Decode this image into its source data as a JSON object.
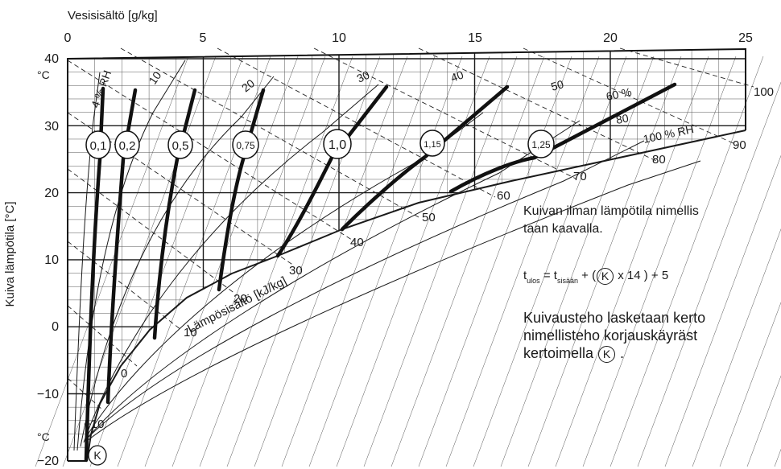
{
  "chart_data": {
    "type": "diagram",
    "x_axis": {
      "label": "Vesisisältö [g/kg]",
      "ticks": [
        "0",
        "5",
        "10",
        "15",
        "20",
        "25"
      ]
    },
    "y_axis": {
      "label": "Kuiva lämpötila [°C]",
      "ticks": [
        "40",
        "30",
        "20",
        "10",
        "0",
        "−10",
        "−20"
      ],
      "unit_top": "°C",
      "unit_bottom": "°C"
    },
    "rh_labels": [
      "4 % RH",
      "10",
      "20",
      "30",
      "40",
      "50",
      "60 %",
      "80",
      "100 % RH"
    ],
    "enthalpy_axis_label": "Lämpösisältö [kJ/kg]",
    "enthalpy_labels": [
      "−10",
      "0",
      "10",
      "20",
      "30",
      "40",
      "50",
      "60",
      "70",
      "80",
      "90",
      "100"
    ],
    "k_factors": [
      "0,1",
      "0,2",
      "0,5",
      "0,75",
      "1,0",
      "1,15",
      "1,25"
    ],
    "k_symbol": "K"
  },
  "notes": {
    "line1": "Kuivan ilman lämpötila nimellis",
    "line2": "taan kaavalla.",
    "formula_t": "t",
    "formula_out_sub": "ulos",
    "formula_eq": " = t",
    "formula_in_sub": "sisään",
    "formula_open": "  + (",
    "formula_k": "K",
    "formula_rest": " x 14 ) + 5",
    "para1": "Kuivausteho lasketaan kerto",
    "para2": "nimellisteho korjauskäyräst",
    "para3": "kertoimella",
    "para3_k": "K",
    "para3_end": " ."
  }
}
